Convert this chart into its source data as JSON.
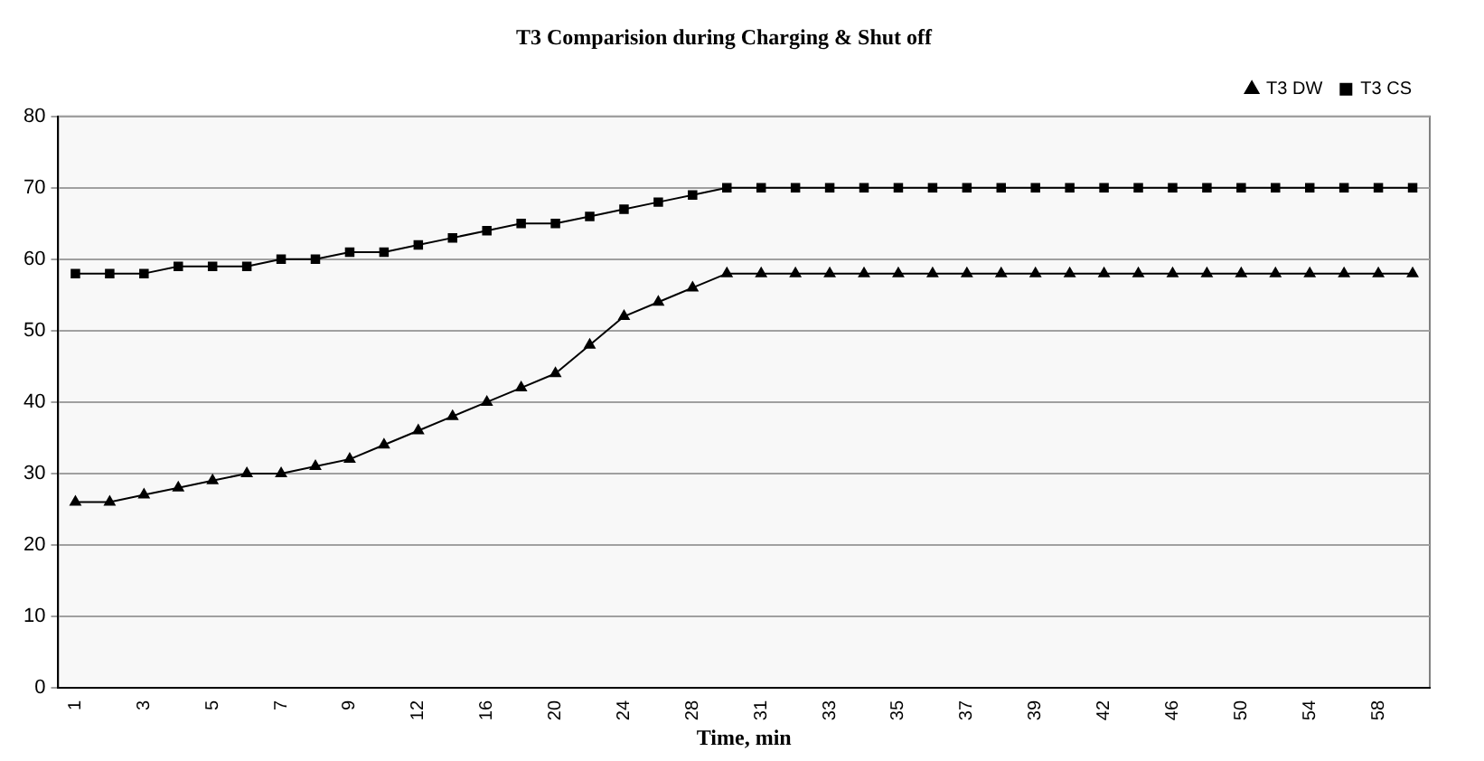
{
  "chart_data": {
    "type": "line",
    "title": "T3 Comparision during Charging & Shut off",
    "xlabel": "Time, min",
    "categories": [
      "1",
      null,
      "3",
      null,
      "5",
      null,
      "7",
      null,
      "9",
      null,
      "12",
      null,
      "16",
      null,
      "20",
      null,
      "24",
      null,
      "28",
      null,
      "31",
      null,
      "33",
      null,
      "35",
      null,
      "37",
      null,
      "39",
      null,
      "42",
      null,
      "46",
      null,
      "50",
      null,
      "54",
      null,
      "58",
      null
    ],
    "series": [
      {
        "name": "T3 DW",
        "color": "#000000",
        "marker": "triangle",
        "values": [
          26,
          26,
          27,
          28,
          29,
          30,
          30,
          31,
          32,
          34,
          36,
          38,
          40,
          42,
          44,
          48,
          52,
          54,
          56,
          58,
          58,
          58,
          58,
          58,
          58,
          58,
          58,
          58,
          58,
          58,
          58,
          58,
          58,
          58,
          58,
          58,
          58,
          58,
          58,
          58
        ]
      },
      {
        "name": "T3 CS",
        "color": "#000000",
        "marker": "square",
        "values": [
          58,
          58,
          58,
          59,
          59,
          59,
          60,
          60,
          61,
          61,
          62,
          63,
          64,
          65,
          65,
          66,
          67,
          68,
          69,
          70,
          70,
          70,
          70,
          70,
          70,
          70,
          70,
          70,
          70,
          70,
          70,
          70,
          70,
          70,
          70,
          70,
          70,
          70,
          70,
          70
        ]
      }
    ],
    "ylim": [
      0,
      80
    ],
    "yticks": [
      0,
      10,
      20,
      30,
      40,
      50,
      60,
      70,
      80
    ],
    "grid": "y",
    "legend": "top right"
  }
}
